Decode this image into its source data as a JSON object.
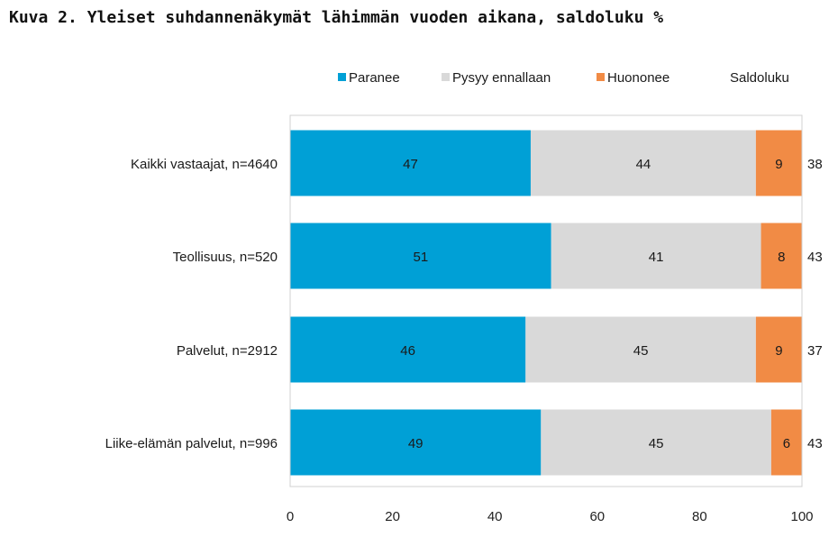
{
  "chart_data": {
    "type": "bar",
    "orientation": "horizontal",
    "stacked": true,
    "title": "Kuva 2. Yleiset suhdannenäkymät lähimmän vuoden aikana, saldoluku %",
    "categories": [
      "Kaikki vastaajat, n=4640",
      "Teollisuus, n=520",
      "Palvelut, n=2912",
      "Liike-elämän palvelut, n=996"
    ],
    "series": [
      {
        "name": "Paranee",
        "values": [
          47,
          51,
          46,
          49
        ],
        "color": "#00a0d6"
      },
      {
        "name": "Pysyy ennallaan",
        "values": [
          44,
          41,
          45,
          45
        ],
        "color": "#d9d9d9"
      },
      {
        "name": "Huononee",
        "values": [
          9,
          8,
          9,
          6
        ],
        "color": "#f18b45"
      }
    ],
    "saldoluku_label": "Saldoluku",
    "saldoluku": [
      38,
      43,
      37,
      43
    ],
    "xlim": [
      0,
      100
    ],
    "xticks": [
      0,
      20,
      40,
      60,
      80,
      100
    ],
    "legend_position": "top",
    "grid": false
  }
}
